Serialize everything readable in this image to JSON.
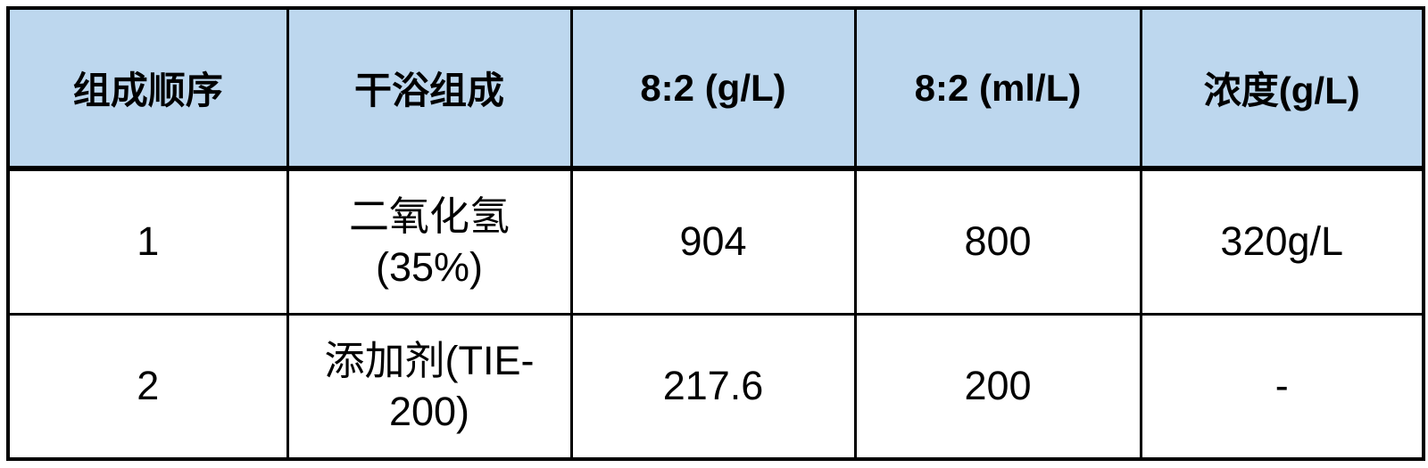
{
  "table": {
    "header_bg": "#BDD7EE",
    "border_color": "#000000",
    "text_color": "#000000",
    "columns": [
      "组成顺序",
      "干浴组成",
      "8:2 (g/L)",
      "8:2 (ml/L)",
      "浓度(g/L)"
    ],
    "rows": [
      {
        "cells": [
          "1",
          "二氧化氢\n(35%)",
          "904",
          "800",
          "320g/L"
        ]
      },
      {
        "cells": [
          "2",
          "添加剂(TIE-\n200)",
          "217.6",
          "200",
          "-"
        ]
      }
    ]
  }
}
